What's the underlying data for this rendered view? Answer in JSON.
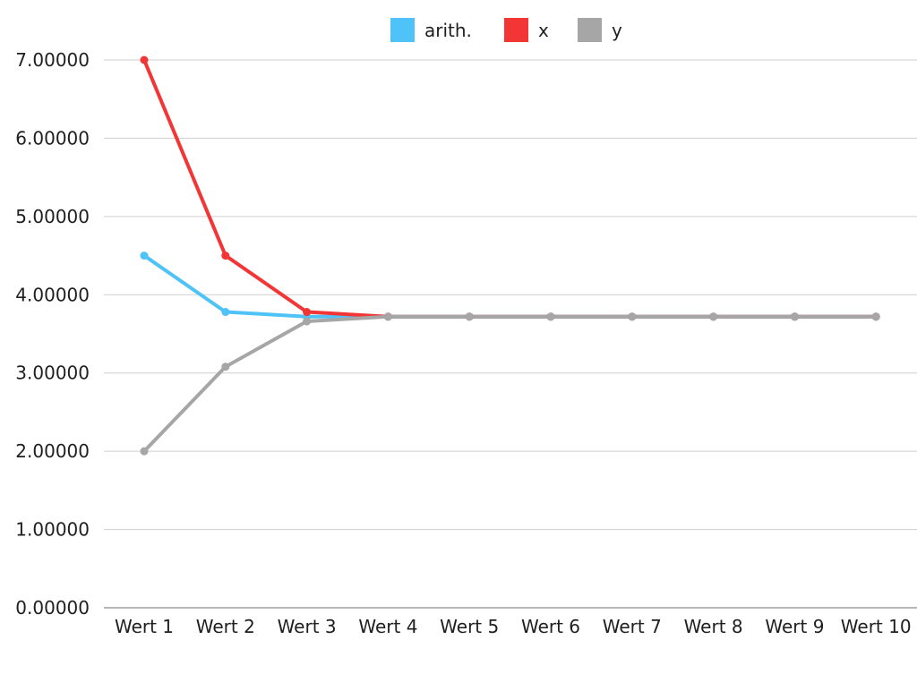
{
  "chart_data": {
    "type": "line",
    "categories": [
      "Wert 1",
      "Wert 2",
      "Wert 3",
      "Wert 4",
      "Wert 5",
      "Wert 6",
      "Wert 7",
      "Wert 8",
      "Wert 9",
      "Wert 10"
    ],
    "series": [
      {
        "name": "arith.",
        "color": "#4FC3F7",
        "values": [
          4.5,
          3.78,
          3.72,
          3.72,
          3.72,
          3.72,
          3.72,
          3.72,
          3.72,
          3.72
        ]
      },
      {
        "name": "x",
        "color": "#F23535",
        "values": [
          7.0,
          4.5,
          3.78,
          3.72,
          3.72,
          3.72,
          3.72,
          3.72,
          3.72,
          3.72
        ]
      },
      {
        "name": "y",
        "color": "#A6A6A6",
        "values": [
          2.0,
          3.08,
          3.66,
          3.72,
          3.72,
          3.72,
          3.72,
          3.72,
          3.72,
          3.72
        ]
      }
    ],
    "y_ticks": [
      "0.00000",
      "1.00000",
      "2.00000",
      "3.00000",
      "4.00000",
      "5.00000",
      "6.00000",
      "7.00000"
    ],
    "ylim": [
      0,
      7
    ],
    "grid": true,
    "legend_position": "top-center",
    "title": "",
    "xlabel": "",
    "ylabel": ""
  }
}
